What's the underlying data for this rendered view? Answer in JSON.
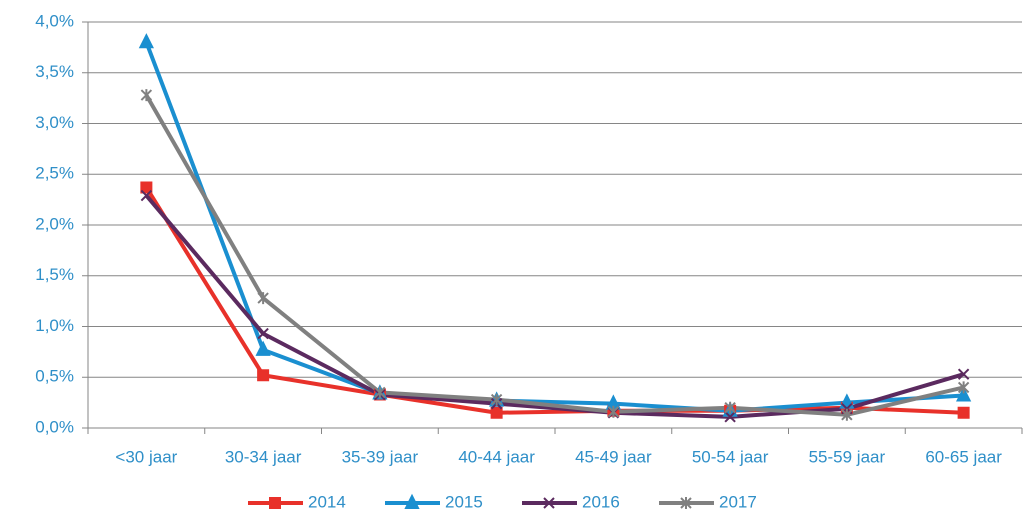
{
  "chart_data": {
    "type": "line",
    "categories": [
      "<30 jaar",
      "30-34 jaar",
      "35-39 jaar",
      "40-44 jaar",
      "45-49 jaar",
      "50-54 jaar",
      "55-59 jaar",
      "60-65 jaar"
    ],
    "series": [
      {
        "name": "2014",
        "color": "#e8312a",
        "marker": "square",
        "values": [
          2.37,
          0.52,
          0.33,
          0.15,
          0.17,
          0.17,
          0.2,
          0.15
        ]
      },
      {
        "name": "2015",
        "color": "#1a8fd0",
        "marker": "triangle",
        "values": [
          3.8,
          0.77,
          0.34,
          0.27,
          0.24,
          0.17,
          0.25,
          0.32
        ]
      },
      {
        "name": "2016",
        "color": "#5b2a5f",
        "marker": "x",
        "values": [
          2.29,
          0.93,
          0.33,
          0.24,
          0.15,
          0.11,
          0.19,
          0.53
        ]
      },
      {
        "name": "2017",
        "color": "#808080",
        "marker": "star",
        "values": [
          3.28,
          1.28,
          0.35,
          0.28,
          0.16,
          0.2,
          0.13,
          0.4
        ]
      }
    ],
    "ylim": [
      0,
      4
    ],
    "yticks": [
      {
        "value": 0,
        "label": "0,0%"
      },
      {
        "value": 0.5,
        "label": "0,5%"
      },
      {
        "value": 1,
        "label": "1,0%"
      },
      {
        "value": 1.5,
        "label": "1,5%"
      },
      {
        "value": 2,
        "label": "2,0%"
      },
      {
        "value": 2.5,
        "label": "2,5%"
      },
      {
        "value": 3,
        "label": "3,0%"
      },
      {
        "value": 3.5,
        "label": "3,5%"
      },
      {
        "value": 4,
        "label": "4,0%"
      }
    ],
    "grid": true,
    "legend": "bottom"
  }
}
